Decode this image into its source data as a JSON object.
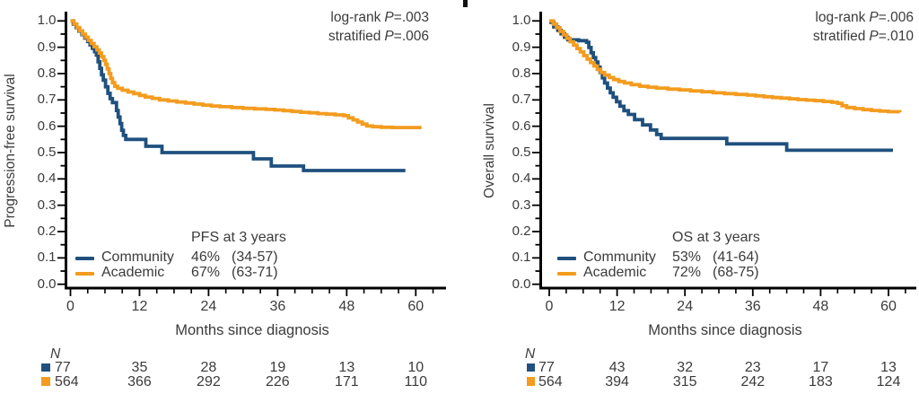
{
  "colors": {
    "community": "#1F507E",
    "academic": "#F39C1F",
    "axis": "#000000",
    "text": "#3B3B3B"
  },
  "chart_data": [
    {
      "type": "line",
      "subtype": "kaplan-meier-step",
      "y_label": "Progression-free survival",
      "x_label": "Months since diagnosis",
      "x_ticks": [
        0,
        12,
        24,
        36,
        48,
        60
      ],
      "x_minor_step": 3,
      "x_max": 63,
      "y_ticks": [
        "1.0",
        "0.9",
        "0.8",
        "0.7",
        "0.6",
        "0.5",
        "0.4",
        "0.3",
        "0.2",
        "0.1",
        "0.0"
      ],
      "ylim": [
        0,
        1
      ],
      "grid": false,
      "stats": [
        {
          "label": "log-rank",
          "p": "P",
          "value": "=.003"
        },
        {
          "label": "stratified",
          "p": "P",
          "value": "=.006"
        }
      ],
      "legend": {
        "title": "PFS at 3 years",
        "entries": [
          {
            "series": "community",
            "label": "Community",
            "value": "46%",
            "ci": "(34-57)"
          },
          {
            "series": "academic",
            "label": "Academic",
            "value": "67%",
            "ci": "(63-71)"
          }
        ]
      },
      "risk_table": {
        "header": "N",
        "rows": [
          {
            "series": "community",
            "counts": [
              "77",
              "35",
              "28",
              "19",
              "13",
              "10"
            ]
          },
          {
            "series": "academic",
            "counts": [
              "564",
              "366",
              "292",
              "226",
              "171",
              "110"
            ]
          }
        ]
      },
      "series": [
        {
          "name": "Community",
          "key": "community",
          "points": [
            [
              0,
              1.0
            ],
            [
              0.5,
              0.987
            ],
            [
              1,
              0.974
            ],
            [
              1.5,
              0.961
            ],
            [
              2,
              0.948
            ],
            [
              2.5,
              0.935
            ],
            [
              3,
              0.922
            ],
            [
              3.4,
              0.909
            ],
            [
              3.8,
              0.896
            ],
            [
              4.2,
              0.883
            ],
            [
              4.5,
              0.87
            ],
            [
              4.8,
              0.845
            ],
            [
              5.1,
              0.82
            ],
            [
              5.4,
              0.795
            ],
            [
              5.7,
              0.775
            ],
            [
              6.1,
              0.75
            ],
            [
              6.5,
              0.725
            ],
            [
              6.9,
              0.705
            ],
            [
              7.3,
              0.69
            ],
            [
              8,
              0.66
            ],
            [
              8.3,
              0.635
            ],
            [
              8.6,
              0.61
            ],
            [
              8.9,
              0.585
            ],
            [
              9.2,
              0.565
            ],
            [
              9.6,
              0.55
            ],
            [
              13.1,
              0.524
            ],
            [
              15.9,
              0.5
            ],
            [
              31.8,
              0.476
            ],
            [
              34.9,
              0.449
            ],
            [
              40.5,
              0.432
            ],
            [
              58.2,
              0.432
            ]
          ]
        },
        {
          "name": "Academic",
          "key": "academic",
          "points": [
            [
              0,
              1.0
            ],
            [
              0.6,
              0.988
            ],
            [
              1.1,
              0.975
            ],
            [
              1.6,
              0.962
            ],
            [
              2.1,
              0.95
            ],
            [
              2.6,
              0.938
            ],
            [
              3.1,
              0.926
            ],
            [
              3.6,
              0.914
            ],
            [
              4.1,
              0.902
            ],
            [
              4.6,
              0.89
            ],
            [
              5,
              0.878
            ],
            [
              5.4,
              0.864
            ],
            [
              5.8,
              0.85
            ],
            [
              6.1,
              0.835
            ],
            [
              6.4,
              0.818
            ],
            [
              6.7,
              0.8
            ],
            [
              7,
              0.782
            ],
            [
              7.3,
              0.765
            ],
            [
              7.7,
              0.752
            ],
            [
              8.2,
              0.744
            ],
            [
              9,
              0.737
            ],
            [
              10,
              0.73
            ],
            [
              11,
              0.724
            ],
            [
              12,
              0.717
            ],
            [
              13,
              0.711
            ],
            [
              14.2,
              0.706
            ],
            [
              15.5,
              0.7
            ],
            [
              17,
              0.696
            ],
            [
              18.5,
              0.692
            ],
            [
              20,
              0.688
            ],
            [
              21.5,
              0.684
            ],
            [
              23,
              0.68
            ],
            [
              24.5,
              0.677
            ],
            [
              26,
              0.674
            ],
            [
              28,
              0.671
            ],
            [
              30,
              0.668
            ],
            [
              32,
              0.666
            ],
            [
              34,
              0.664
            ],
            [
              35.5,
              0.662
            ],
            [
              37,
              0.659
            ],
            [
              38.5,
              0.656
            ],
            [
              40,
              0.653
            ],
            [
              41.5,
              0.651
            ],
            [
              43,
              0.648
            ],
            [
              44.5,
              0.646
            ],
            [
              46,
              0.643
            ],
            [
              47.5,
              0.64
            ],
            [
              48.3,
              0.632
            ],
            [
              49.1,
              0.624
            ],
            [
              49.9,
              0.616
            ],
            [
              50.7,
              0.608
            ],
            [
              51.5,
              0.601
            ],
            [
              52.5,
              0.598
            ],
            [
              54,
              0.596
            ],
            [
              56,
              0.595
            ],
            [
              61,
              0.595
            ]
          ]
        }
      ]
    },
    {
      "type": "line",
      "subtype": "kaplan-meier-step",
      "y_label": "Overall survival",
      "x_label": "Months since diagnosis",
      "x_ticks": [
        0,
        12,
        24,
        36,
        48,
        60
      ],
      "x_minor_step": 3,
      "x_max": 63,
      "y_ticks": [
        "1.0",
        "0.9",
        "0.8",
        "0.7",
        "0.6",
        "0.5",
        "0.4",
        "0.3",
        "0.2",
        "0.1",
        "0.0"
      ],
      "ylim": [
        0,
        1
      ],
      "grid": false,
      "stats": [
        {
          "label": "log-rank",
          "p": "P",
          "value": "=.006"
        },
        {
          "label": "stratified",
          "p": "P",
          "value": "=.010"
        }
      ],
      "legend": {
        "title": "OS at 3 years",
        "entries": [
          {
            "series": "community",
            "label": "Community",
            "value": "53%",
            "ci": "(41-64)"
          },
          {
            "series": "academic",
            "label": "Academic",
            "value": "72%",
            "ci": "(68-75)"
          }
        ]
      },
      "risk_table": {
        "header": "N",
        "rows": [
          {
            "series": "community",
            "counts": [
              "77",
              "43",
              "32",
              "23",
              "17",
              "13"
            ]
          },
          {
            "series": "academic",
            "counts": [
              "564",
              "394",
              "315",
              "242",
              "183",
              "124"
            ]
          }
        ]
      },
      "series": [
        {
          "name": "Community",
          "key": "community",
          "points": [
            [
              0,
              0.995
            ],
            [
              0.8,
              0.977
            ],
            [
              1.5,
              0.964
            ],
            [
              2.1,
              0.951
            ],
            [
              2.7,
              0.938
            ],
            [
              3.3,
              0.928
            ],
            [
              5.2,
              0.925
            ],
            [
              6.6,
              0.919
            ],
            [
              7,
              0.899
            ],
            [
              7.4,
              0.879
            ],
            [
              7.8,
              0.861
            ],
            [
              8.2,
              0.844
            ],
            [
              8.6,
              0.824
            ],
            [
              9,
              0.804
            ],
            [
              9.4,
              0.784
            ],
            [
              9.8,
              0.764
            ],
            [
              10.3,
              0.745
            ],
            [
              10.8,
              0.727
            ],
            [
              11.3,
              0.71
            ],
            [
              11.9,
              0.693
            ],
            [
              12.5,
              0.676
            ],
            [
              13.2,
              0.659
            ],
            [
              14,
              0.645
            ],
            [
              15.1,
              0.625
            ],
            [
              16.5,
              0.605
            ],
            [
              17.9,
              0.586
            ],
            [
              19,
              0.569
            ],
            [
              19.8,
              0.554
            ],
            [
              31.4,
              0.533
            ],
            [
              42,
              0.509
            ],
            [
              60.8,
              0.509
            ]
          ]
        },
        {
          "name": "Academic",
          "key": "academic",
          "points": [
            [
              0,
              1.0
            ],
            [
              0.7,
              0.988
            ],
            [
              1.3,
              0.974
            ],
            [
              1.9,
              0.96
            ],
            [
              2.5,
              0.947
            ],
            [
              3.1,
              0.934
            ],
            [
              3.7,
              0.921
            ],
            [
              4.3,
              0.908
            ],
            [
              4.9,
              0.895
            ],
            [
              5.5,
              0.882
            ],
            [
              6.1,
              0.868
            ],
            [
              6.7,
              0.855
            ],
            [
              7.3,
              0.842
            ],
            [
              7.9,
              0.829
            ],
            [
              8.5,
              0.816
            ],
            [
              9.1,
              0.804
            ],
            [
              9.8,
              0.794
            ],
            [
              10.6,
              0.785
            ],
            [
              11.4,
              0.777
            ],
            [
              12.3,
              0.77
            ],
            [
              13.3,
              0.764
            ],
            [
              14.5,
              0.758
            ],
            [
              16,
              0.752
            ],
            [
              17.5,
              0.748
            ],
            [
              19,
              0.745
            ],
            [
              21,
              0.741
            ],
            [
              23,
              0.738
            ],
            [
              25,
              0.734
            ],
            [
              27,
              0.731
            ],
            [
              29,
              0.727
            ],
            [
              31,
              0.724
            ],
            [
              33,
              0.721
            ],
            [
              35,
              0.718
            ],
            [
              36.5,
              0.715
            ],
            [
              38,
              0.712
            ],
            [
              39.5,
              0.709
            ],
            [
              41,
              0.707
            ],
            [
              42.5,
              0.704
            ],
            [
              44,
              0.701
            ],
            [
              45.5,
              0.699
            ],
            [
              47,
              0.697
            ],
            [
              48.5,
              0.694
            ],
            [
              50,
              0.691
            ],
            [
              51,
              0.687
            ],
            [
              51.8,
              0.678
            ],
            [
              52.6,
              0.671
            ],
            [
              54,
              0.667
            ],
            [
              55.5,
              0.663
            ],
            [
              57,
              0.66
            ],
            [
              58.5,
              0.657
            ],
            [
              60,
              0.655
            ],
            [
              62,
              0.653
            ]
          ]
        }
      ]
    }
  ]
}
